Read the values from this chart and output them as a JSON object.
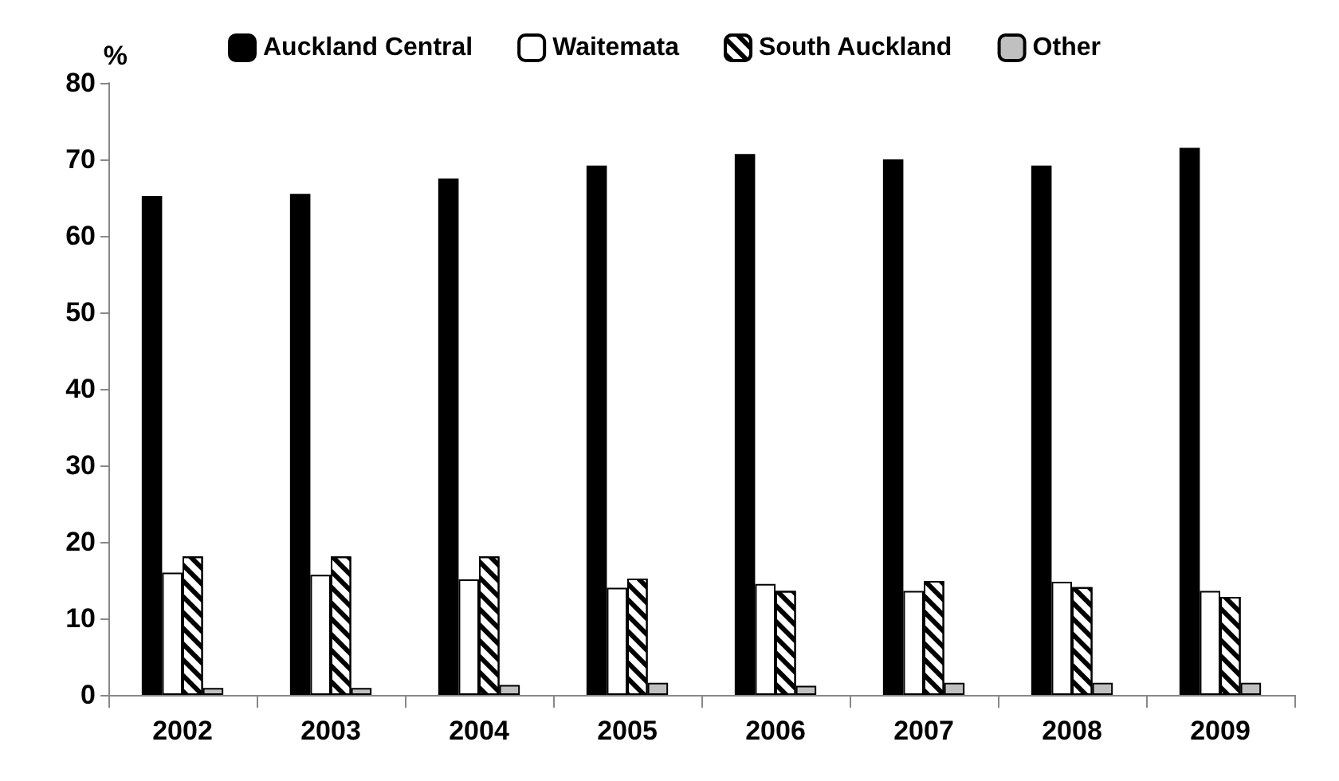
{
  "chart_data": {
    "type": "bar",
    "ylabel": "%",
    "categories": [
      "2002",
      "2003",
      "2004",
      "2005",
      "2006",
      "2007",
      "2008",
      "2009"
    ],
    "series": [
      {
        "name": "Auckland Central",
        "color": "#000000",
        "values": [
          65.2,
          65.5,
          67.5,
          69.2,
          70.7,
          70,
          69.2,
          71.5
        ]
      },
      {
        "name": "Waitemata",
        "color": "#ffffff",
        "values": [
          16,
          15.7,
          15.1,
          14,
          14.5,
          13.6,
          14.8,
          13.6
        ]
      },
      {
        "name": "South Auckland",
        "color": "#ffffff",
        "values": [
          18.1,
          18.1,
          18.1,
          15.2,
          13.6,
          14.9,
          14.1,
          12.8
        ]
      },
      {
        "name": "Other",
        "color": "#c0c0c0",
        "values": [
          0.9,
          0.9,
          1.3,
          1.6,
          1.2,
          1.6,
          1.6,
          1.6
        ]
      }
    ],
    "ylim": [
      0,
      80
    ],
    "yticks": [
      0,
      10,
      20,
      30,
      40,
      50,
      60,
      70,
      80
    ],
    "grid": false,
    "legend": "top"
  }
}
